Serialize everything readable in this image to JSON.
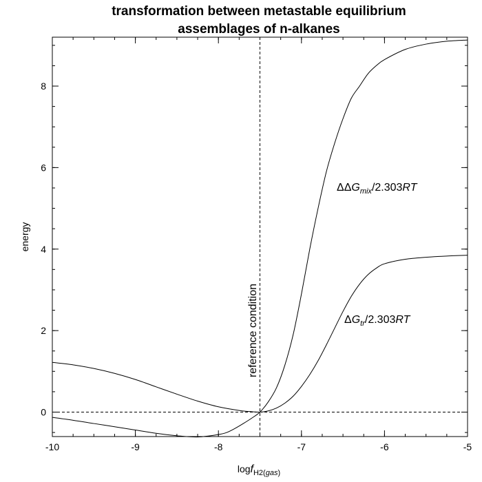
{
  "chart_data": {
    "type": "line",
    "title_line1": "transformation between metastable equilibrium",
    "title_line2": "assemblages of n-alkanes",
    "xlabel": {
      "prefix": "log",
      "italic": "f",
      "subscript": "H2(",
      "subscript_italic": "gas",
      "subscript_end": ")"
    },
    "ylabel": "energy",
    "xlim": [
      -10,
      -5
    ],
    "ylim": [
      -0.6,
      9.2
    ],
    "xticks": [
      -10,
      -9,
      -8,
      -7,
      -6,
      -5
    ],
    "xtick_labels": [
      "-10",
      "-9",
      "-8",
      "-7",
      "-6",
      "-5"
    ],
    "yticks": [
      0,
      2,
      4,
      6,
      8
    ],
    "ytick_labels": [
      "0",
      "2",
      "4",
      "6",
      "8"
    ],
    "reference_line": {
      "x": -7.5,
      "label": "reference condition"
    },
    "zero_line": {
      "y": 0
    },
    "series": [
      {
        "annotation": {
          "delta": "ΔΔ",
          "italic": "G",
          "sub": "mix",
          "tail": "/2.303",
          "tail_italic": "RT"
        },
        "x": [
          -10,
          -9.75,
          -9.5,
          -9.25,
          -9,
          -8.75,
          -8.5,
          -8.25,
          -8,
          -7.9,
          -7.8,
          -7.7,
          -7.6,
          -7.5,
          -7.4,
          -7.3,
          -7.2,
          -7.1,
          -7,
          -6.9,
          -6.8,
          -6.7,
          -6.6,
          -6.5,
          -6.4,
          -6.3,
          -6.2,
          -6.1,
          -6,
          -5.75,
          -5.5,
          -5.25,
          -5
        ],
        "y": [
          -0.13,
          -0.2,
          -0.28,
          -0.36,
          -0.44,
          -0.52,
          -0.58,
          -0.61,
          -0.55,
          -0.5,
          -0.4,
          -0.28,
          -0.15,
          0.0,
          0.25,
          0.6,
          1.15,
          1.9,
          2.9,
          4.0,
          5.0,
          5.9,
          6.6,
          7.2,
          7.7,
          8.0,
          8.3,
          8.5,
          8.65,
          8.9,
          9.03,
          9.1,
          9.13
        ]
      },
      {
        "annotation": {
          "delta": "Δ",
          "italic": "G",
          "sub": "tr",
          "tail": "/2.303",
          "tail_italic": "RT"
        },
        "x": [
          -10,
          -9.75,
          -9.5,
          -9.25,
          -9,
          -8.75,
          -8.5,
          -8.25,
          -8,
          -7.75,
          -7.6,
          -7.5,
          -7.4,
          -7.3,
          -7.2,
          -7.1,
          -7,
          -6.9,
          -6.8,
          -6.7,
          -6.6,
          -6.5,
          -6.4,
          -6.3,
          -6.2,
          -6.1,
          -6,
          -5.75,
          -5.5,
          -5.25,
          -5
        ],
        "y": [
          1.22,
          1.16,
          1.07,
          0.95,
          0.8,
          0.62,
          0.44,
          0.27,
          0.13,
          0.04,
          0.01,
          0.0,
          0.03,
          0.1,
          0.22,
          0.39,
          0.63,
          0.92,
          1.26,
          1.65,
          2.06,
          2.47,
          2.84,
          3.14,
          3.37,
          3.53,
          3.64,
          3.75,
          3.8,
          3.83,
          3.85
        ]
      }
    ]
  }
}
